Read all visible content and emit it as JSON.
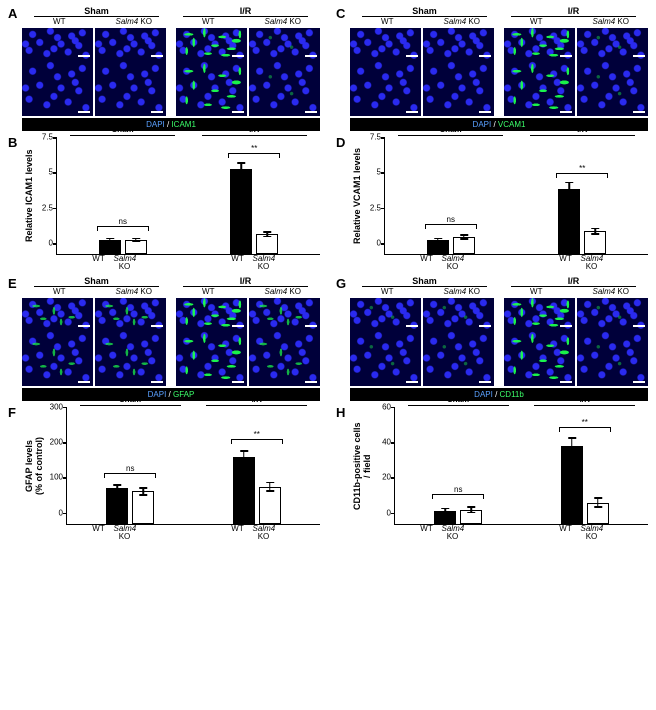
{
  "conditions": [
    "Sham",
    "I/R"
  ],
  "genotypes": {
    "wt": "WT",
    "ko_pre": "Salm4",
    "ko_suf": "KO"
  },
  "stains": {
    "nuclear": "DAPI",
    "sep": " / "
  },
  "colors": {
    "micro_bg": "#00003a",
    "nuclei": "#2a2af0",
    "green": "#1cff4a",
    "dapi_text": "#5aa0ff",
    "marker_text": "#3cff6a",
    "bar_wt": "#000000",
    "bar_ko": "#ffffff",
    "axis": "#000000",
    "bg": "#ffffff"
  },
  "font": {
    "letter_pt": 13,
    "label_pt": 9,
    "tick_pt": 8
  },
  "panels": {
    "A": {
      "type": "micrograph",
      "marker": "ICAM1",
      "signal": {
        "sham_wt": "none",
        "sham_ko": "none",
        "ir_wt": "high",
        "ir_ko": "low"
      }
    },
    "B": {
      "type": "bar",
      "ylabel": "Relative ICAM1 levels",
      "ylim": [
        0,
        7.5
      ],
      "ytick_step": 2.5,
      "groups": [
        {
          "cond": "Sham",
          "sig": "ns",
          "sig_y": 1.6,
          "bars": [
            {
              "g": "wt",
              "mean": 1.0,
              "err": 0.15
            },
            {
              "g": "ko",
              "mean": 1.0,
              "err": 0.15
            }
          ]
        },
        {
          "cond": "I/R",
          "sig": "**",
          "sig_y": 6.8,
          "bars": [
            {
              "g": "wt",
              "mean": 6.0,
              "err": 0.5
            },
            {
              "g": "ko",
              "mean": 1.4,
              "err": 0.2
            }
          ]
        }
      ]
    },
    "C": {
      "type": "micrograph",
      "marker": "VCAM1",
      "signal": {
        "sham_wt": "none",
        "sham_ko": "none",
        "ir_wt": "high",
        "ir_ko": "low"
      }
    },
    "D": {
      "type": "bar",
      "ylabel": "Relative VCAM1 levels",
      "ylim": [
        0,
        7.5
      ],
      "ytick_step": 2.5,
      "groups": [
        {
          "cond": "Sham",
          "sig": "ns",
          "sig_y": 1.8,
          "bars": [
            {
              "g": "wt",
              "mean": 1.0,
              "err": 0.15
            },
            {
              "g": "ko",
              "mean": 1.2,
              "err": 0.2
            }
          ]
        },
        {
          "cond": "I/R",
          "sig": "**",
          "sig_y": 5.4,
          "bars": [
            {
              "g": "wt",
              "mean": 4.6,
              "err": 0.5
            },
            {
              "g": "ko",
              "mean": 1.6,
              "err": 0.25
            }
          ]
        }
      ]
    },
    "E": {
      "type": "micrograph",
      "marker": "GFAP",
      "signal": {
        "sham_wt": "med",
        "sham_ko": "med",
        "ir_wt": "high",
        "ir_ko": "med"
      }
    },
    "F": {
      "type": "bar",
      "ylabel": "GFAP levels\n(% of control)",
      "ylim": [
        0,
        300
      ],
      "ytick_step": 100,
      "groups": [
        {
          "cond": "Sham",
          "sig": "ns",
          "sig_y": 130,
          "bars": [
            {
              "g": "wt",
              "mean": 100,
              "err": 12
            },
            {
              "g": "ko",
              "mean": 92,
              "err": 12
            }
          ]
        },
        {
          "cond": "I/R",
          "sig": "**",
          "sig_y": 225,
          "bars": [
            {
              "g": "wt",
              "mean": 190,
              "err": 18
            },
            {
              "g": "ko",
              "mean": 105,
              "err": 14
            }
          ]
        }
      ]
    },
    "G": {
      "type": "micrograph",
      "marker": "CD11b",
      "signal": {
        "sham_wt": "low",
        "sham_ko": "low",
        "ir_wt": "high",
        "ir_ko": "low"
      }
    },
    "H": {
      "type": "bar",
      "ylabel": "CD11b-positive cells\n/ field",
      "ylim": [
        0,
        60
      ],
      "ytick_step": 20,
      "groups": [
        {
          "cond": "Sham",
          "sig": "ns",
          "sig_y": 14,
          "bars": [
            {
              "g": "wt",
              "mean": 7,
              "err": 2
            },
            {
              "g": "ko",
              "mean": 8,
              "err": 2
            }
          ]
        },
        {
          "cond": "I/R",
          "sig": "**",
          "sig_y": 52,
          "bars": [
            {
              "g": "wt",
              "mean": 44,
              "err": 5
            },
            {
              "g": "ko",
              "mean": 12,
              "err": 3
            }
          ]
        }
      ]
    }
  },
  "layout_order": [
    "A",
    "C",
    "B",
    "D",
    "E",
    "G",
    "F",
    "H"
  ]
}
